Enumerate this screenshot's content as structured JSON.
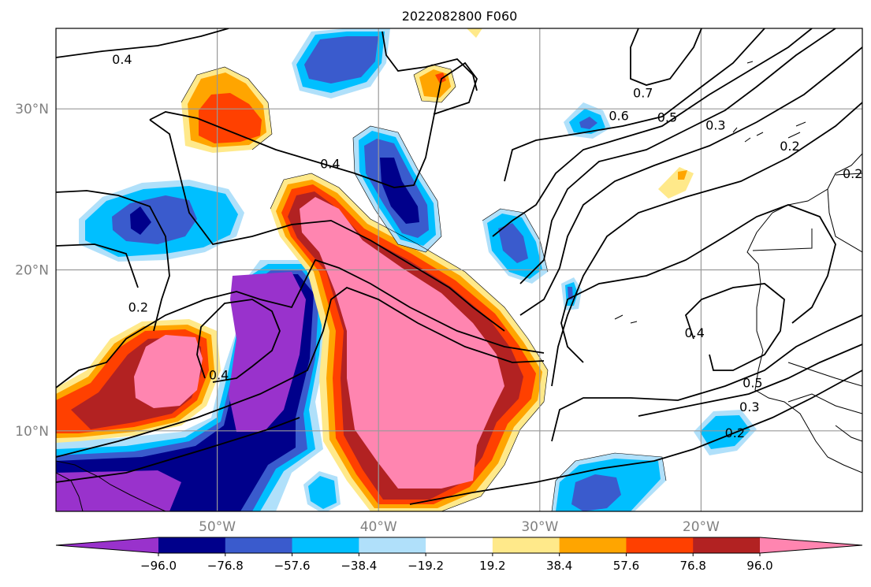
{
  "title": "2022082800 F060",
  "map": {
    "lon_range": [
      -60,
      -10
    ],
    "lat_range": [
      5,
      35
    ],
    "gridlines": true,
    "lon_ticks": [
      {
        "value": -50,
        "label": "50°W"
      },
      {
        "value": -40,
        "label": "40°W"
      },
      {
        "value": -30,
        "label": "30°W"
      },
      {
        "value": -20,
        "label": "20°W"
      }
    ],
    "lat_ticks": [
      {
        "value": 30,
        "label": "30°N"
      },
      {
        "value": 20,
        "label": "20°N"
      },
      {
        "value": 10,
        "label": "10°N"
      }
    ],
    "contour_labels": [
      {
        "text": "0.4",
        "lon": -55.9,
        "lat": 33.1
      },
      {
        "text": "0.4",
        "lon": -43.0,
        "lat": 26.6
      },
      {
        "text": "0.2",
        "lon": -54.9,
        "lat": 17.7
      },
      {
        "text": "0.4",
        "lon": -49.9,
        "lat": 13.5
      },
      {
        "text": "0.7",
        "lon": -23.6,
        "lat": 31.0
      },
      {
        "text": "0.6",
        "lon": -25.1,
        "lat": 29.6
      },
      {
        "text": "0.5",
        "lon": -22.1,
        "lat": 29.5
      },
      {
        "text": "0.3",
        "lon": -19.1,
        "lat": 29.0
      },
      {
        "text": "0.2",
        "lon": -14.5,
        "lat": 27.7
      },
      {
        "text": "0.2",
        "lon": -10.6,
        "lat": 26.0
      },
      {
        "text": "0.4",
        "lon": -20.4,
        "lat": 16.1
      },
      {
        "text": "0.5",
        "lon": -16.8,
        "lat": 13.0
      },
      {
        "text": "0.3",
        "lon": -17.0,
        "lat": 11.5
      },
      {
        "text": "0.2",
        "lon": -17.9,
        "lat": 9.9
      }
    ]
  },
  "colorbar": {
    "colors": [
      "#9932cc",
      "#00008b",
      "#3a5bcd",
      "#00bfff",
      "#b0e0fa",
      "#ffffff",
      "#ffe98a",
      "#ffa500",
      "#ff4000",
      "#b22222",
      "#ff85b0"
    ],
    "tick_labels": [
      "−96.0",
      "−76.8",
      "−57.6",
      "−38.4",
      "−19.2",
      "19.2",
      "38.4",
      "57.6",
      "76.8",
      "96.0"
    ]
  }
}
